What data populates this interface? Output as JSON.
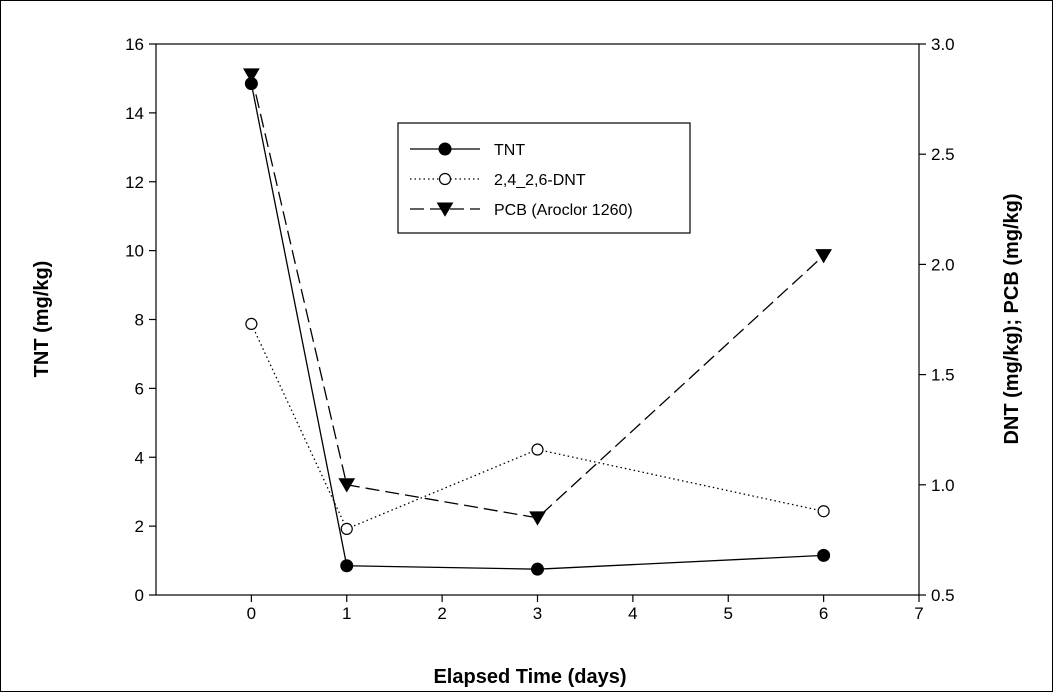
{
  "chart_data": {
    "type": "line",
    "xlabel": "Elapsed Time (days)",
    "ylabel_left": "TNT (mg/kg)",
    "ylabel_right": "DNT (mg/kg); PCB (mg/kg)",
    "xlim": [
      -1,
      7
    ],
    "ylim_left": [
      0,
      16
    ],
    "ylim_right": [
      0.5,
      3.0
    ],
    "x_ticks": [
      0,
      1,
      2,
      3,
      4,
      5,
      6,
      7
    ],
    "y_ticks_left": [
      0,
      2,
      4,
      6,
      8,
      10,
      12,
      14,
      16
    ],
    "y_ticks_right": [
      0.5,
      1.0,
      1.5,
      2.0,
      2.5,
      3.0
    ],
    "legend_position": "top-center",
    "series": [
      {
        "name": "TNT",
        "axis": "left",
        "style": "solid",
        "marker": "filled-circle",
        "x": [
          0,
          1,
          3,
          6
        ],
        "values": [
          14.85,
          0.85,
          0.75,
          1.15
        ]
      },
      {
        "name": "2,4_2,6-DNT",
        "axis": "right",
        "style": "dotted",
        "marker": "open-circle",
        "x": [
          0,
          1,
          3,
          6
        ],
        "values": [
          1.73,
          0.8,
          1.16,
          0.88
        ]
      },
      {
        "name": "PCB (Aroclor 1260)",
        "axis": "right",
        "style": "dashed",
        "marker": "filled-triangle-down",
        "x": [
          0,
          1,
          3,
          6
        ],
        "values": [
          2.86,
          1.0,
          0.85,
          2.04
        ]
      }
    ]
  }
}
